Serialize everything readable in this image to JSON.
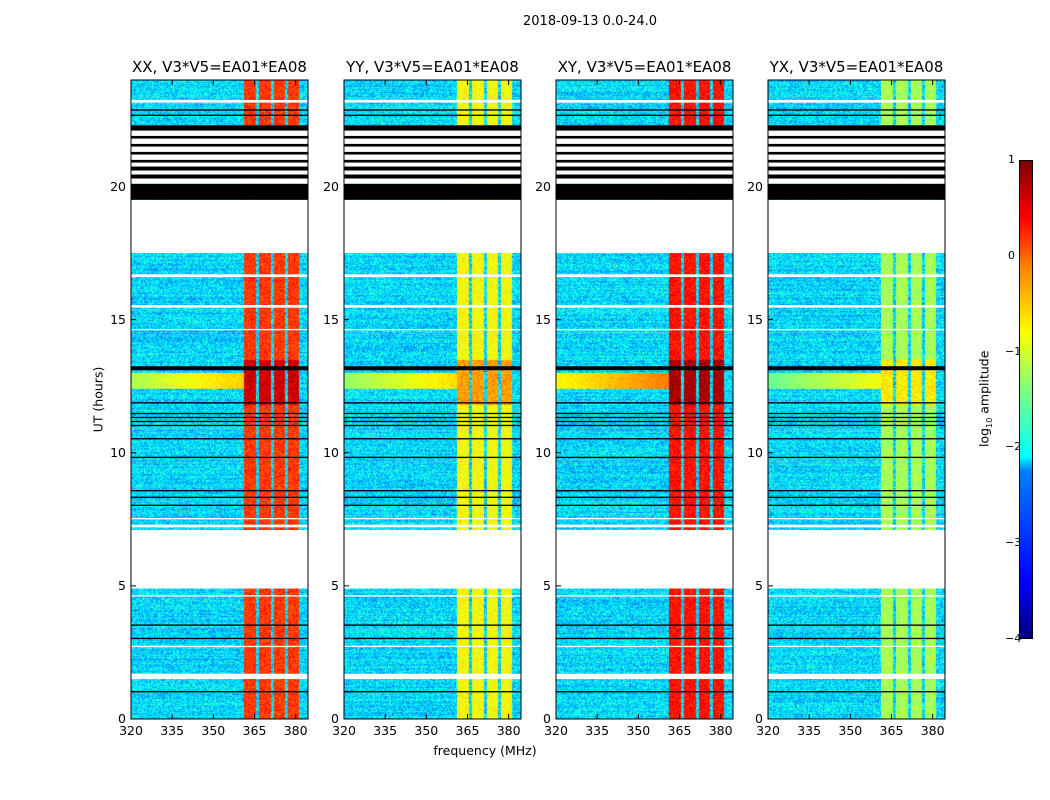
{
  "suptitle": "2018-09-13 0.0-24.0",
  "chart_data": {
    "type": "heatmap",
    "title": "2018-09-13 0.0-24.0",
    "xlabel": "frequency (MHz)",
    "ylabel": "UT (hours)",
    "xlim": [
      320,
      384.5
    ],
    "ylim": [
      0,
      24
    ],
    "xticks": [
      "320",
      "335",
      "350",
      "365",
      "380"
    ],
    "yticks": [
      "0",
      "5",
      "10",
      "15",
      "20"
    ],
    "colorbar": {
      "label_prefix": "log",
      "label_sub": "10",
      "label_suffix": " amplitude",
      "range": [
        -4,
        1
      ],
      "ticks": [
        "1",
        "0",
        "−1",
        "−2",
        "−3",
        "−4"
      ],
      "colormap": "jet"
    },
    "background_level": -2.3,
    "rfi_bands_mhz": [
      [
        361,
        365.5
      ],
      [
        366.5,
        371
      ],
      [
        372,
        376
      ],
      [
        377,
        381
      ]
    ],
    "blank_hours": [
      [
        4.9,
        7.1
      ],
      [
        17.5,
        19.5
      ]
    ],
    "flagged_hours": [
      [
        19.5,
        20.1
      ],
      [
        20.3,
        20.45
      ],
      [
        20.6,
        20.75
      ],
      [
        20.9,
        21.0
      ],
      [
        21.2,
        21.3
      ],
      [
        21.5,
        21.6
      ],
      [
        21.8,
        21.9
      ],
      [
        22.1,
        22.3
      ],
      [
        22.65,
        22.7
      ],
      [
        22.85,
        22.9
      ],
      [
        13.1,
        13.25
      ],
      [
        11.0,
        11.05
      ],
      [
        11.15,
        11.2
      ],
      [
        11.3,
        11.35
      ],
      [
        11.45,
        11.5
      ],
      [
        10.5,
        10.55
      ],
      [
        9.8,
        9.85
      ],
      [
        8.3,
        8.35
      ],
      [
        8.55,
        8.6
      ],
      [
        8.0,
        8.05
      ],
      [
        3.5,
        3.55
      ],
      [
        3.0,
        3.05
      ],
      [
        1.0,
        1.05
      ],
      [
        11.85,
        11.9
      ]
    ],
    "white_line_hours": [
      [
        7.2,
        7.3
      ],
      [
        1.5,
        1.7
      ],
      [
        15.45,
        15.55
      ],
      [
        16.6,
        16.7
      ],
      [
        23.15,
        23.25
      ],
      [
        7.5,
        7.55
      ],
      [
        14.6,
        14.65
      ],
      [
        4.6,
        4.65
      ],
      [
        2.7,
        2.75
      ]
    ],
    "panels": [
      {
        "title": "XX, V3*V5=EA01*EA08",
        "rfi_level": 0.1,
        "broadband_level": -0.6
      },
      {
        "title": "YY, V3*V5=EA01*EA08",
        "rfi_level": -0.9,
        "broadband_level": -0.7
      },
      {
        "title": "XY, V3*V5=EA01*EA08",
        "rfi_level": 0.3,
        "broadband_level": -0.2
      },
      {
        "title": "YX, V3*V5=EA01*EA08",
        "rfi_level": -1.3,
        "broadband_level": -0.9
      }
    ]
  }
}
